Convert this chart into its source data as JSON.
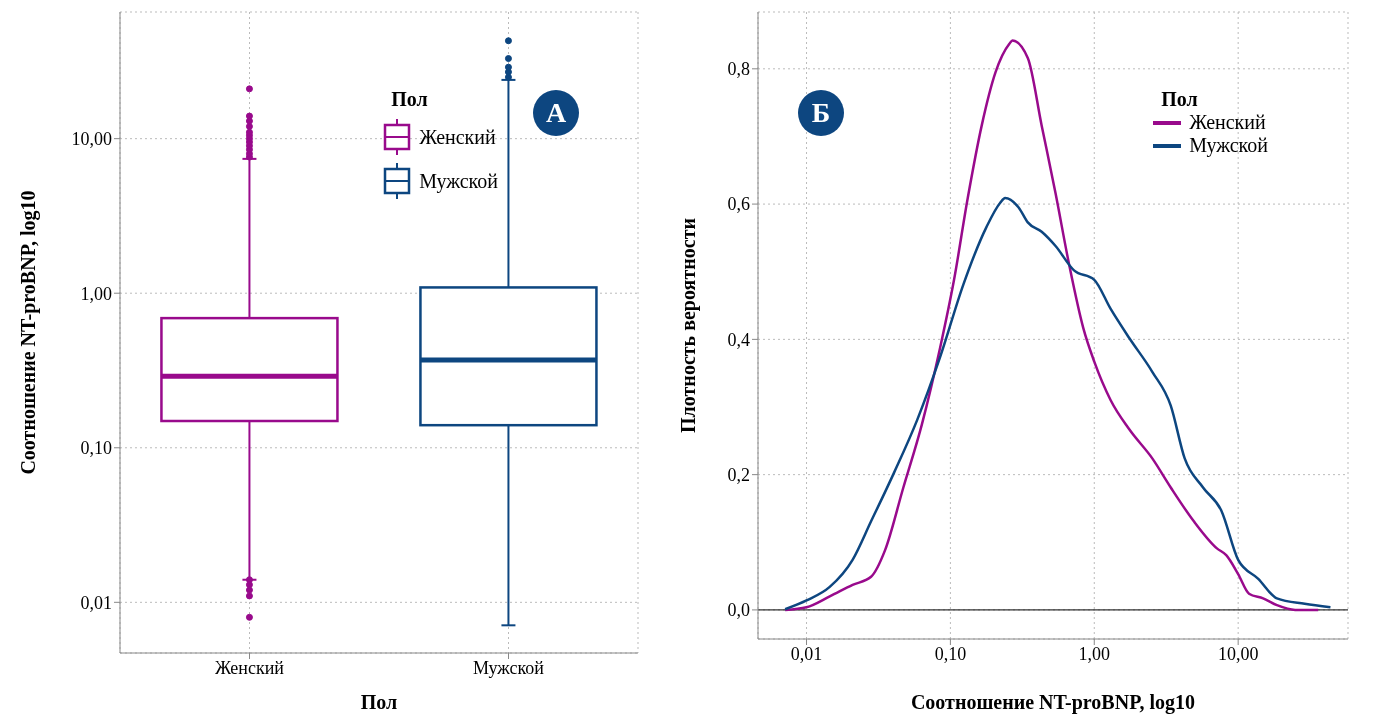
{
  "chart_data": [
    {
      "type": "box",
      "categories": [
        "Женский",
        "Мужской"
      ],
      "xlabel": "Пол",
      "ylabel": "Соотношение NT-proBNP, log10",
      "legend_title": "Пол",
      "legend": "top right",
      "log": true,
      "grid": true,
      "ylim": [
        0.0047,
        66
      ],
      "yticks": [
        {
          "value": 0.01,
          "label": "0,01"
        },
        {
          "value": 0.1,
          "label": "0,10"
        },
        {
          "value": 1,
          "label": "1,00"
        },
        {
          "value": 10,
          "label": "10,00"
        }
      ],
      "annotations": [
        "А"
      ],
      "series": [
        {
          "name": "Женский",
          "color": "#990a8c",
          "boxes": [
            {
              "low": 0.014,
              "q1": 0.149,
              "median": 0.29,
              "q3": 0.69,
              "high": 7.4,
              "outliers": [
                7.6,
                8,
                8.5,
                9,
                9.5,
                10,
                10.5,
                11,
                12,
                13,
                14,
                21,
                0.014,
                0.013,
                0.012,
                0.011,
                0.008
              ]
            },
            null
          ]
        },
        {
          "name": "Мужской",
          "color": "#0d4680",
          "boxes": [
            null,
            {
              "low": 0.0071,
              "q1": 0.14,
              "median": 0.37,
              "q3": 1.09,
              "high": 24,
              "outliers": [
                25,
                27,
                29,
                33,
                43
              ]
            }
          ]
        }
      ]
    },
    {
      "type": "line",
      "xlabel": "Соотношение NT-proBNP, log10",
      "ylabel": "Плотность вероятности",
      "legend_title": "Пол",
      "legend": "top right",
      "log": "x",
      "grid": true,
      "xlim": [
        0.0046,
        58
      ],
      "xticks": [
        {
          "value": 0.01,
          "label": "0,01"
        },
        {
          "value": 0.1,
          "label": "0,10"
        },
        {
          "value": 1,
          "label": "1,00"
        },
        {
          "value": 10,
          "label": "10,00"
        }
      ],
      "ylim": [
        -0.043,
        0.884
      ],
      "yticks": [
        {
          "value": 0,
          "label": "0,0"
        },
        {
          "value": 0.2,
          "label": "0,2"
        },
        {
          "value": 0.4,
          "label": "0,4"
        },
        {
          "value": 0.6,
          "label": "0,6"
        },
        {
          "value": 0.8,
          "label": "0,8"
        }
      ],
      "ref_lines": [
        {
          "axis": "y",
          "value": 0,
          "color": "#000000"
        }
      ],
      "annotations": [
        "Б"
      ],
      "series": [
        {
          "name": "Женский",
          "color": "#990a8c",
          "x": [
            0.0071,
            0.01,
            0.0145,
            0.0209,
            0.0281,
            0.0351,
            0.0471,
            0.0633,
            0.0849,
            0.106,
            0.132,
            0.165,
            0.206,
            0.257,
            0.27,
            0.345,
            0.431,
            0.538,
            0.671,
            0.838,
            1,
            1.3,
            1.75,
            2.53,
            3.4,
            4.92,
            7.12,
            8.26,
            10,
            11.9,
            14.9,
            18.6,
            24.9,
            36
          ],
          "values": [
            0,
            0.004,
            0.02,
            0.037,
            0.049,
            0.088,
            0.181,
            0.274,
            0.388,
            0.488,
            0.609,
            0.716,
            0.795,
            0.837,
            0.842,
            0.816,
            0.716,
            0.616,
            0.509,
            0.417,
            0.367,
            0.31,
            0.267,
            0.224,
            0.181,
            0.131,
            0.091,
            0.081,
            0.053,
            0.024,
            0.017,
            0.007,
            0,
            0
          ]
        },
        {
          "name": "Мужской",
          "color": "#0d4680",
          "x": [
            0.0071,
            0.01,
            0.0145,
            0.0209,
            0.0281,
            0.0406,
            0.0588,
            0.0849,
            0.123,
            0.178,
            0.222,
            0.24,
            0.298,
            0.345,
            0.431,
            0.538,
            0.723,
            1,
            1.3,
            1.75,
            2.53,
            3.4,
            4.25,
            5.7,
            7.67,
            10,
            13.8,
            18.6,
            29,
            43.8
          ],
          "values": [
            0.001,
            0.014,
            0.034,
            0.074,
            0.131,
            0.203,
            0.281,
            0.374,
            0.481,
            0.566,
            0.602,
            0.609,
            0.595,
            0.573,
            0.559,
            0.538,
            0.502,
            0.488,
            0.445,
            0.402,
            0.352,
            0.302,
            0.224,
            0.181,
            0.146,
            0.074,
            0.046,
            0.017,
            0.009,
            0.004
          ]
        }
      ]
    }
  ]
}
